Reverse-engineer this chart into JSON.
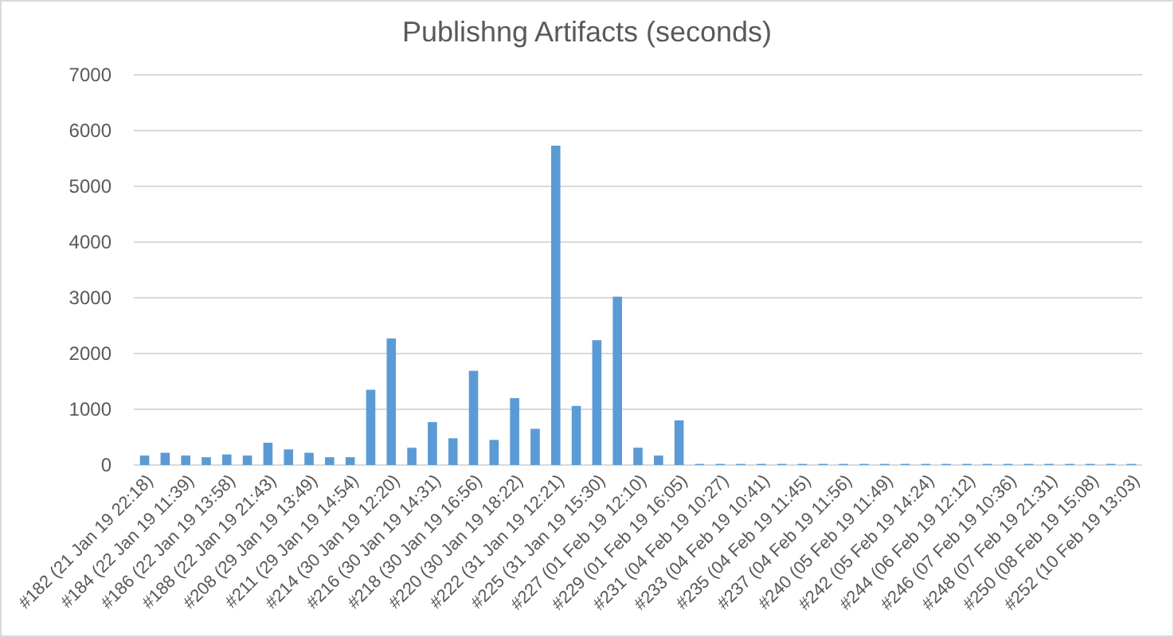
{
  "chart_data": {
    "type": "bar",
    "title": "Publishng Artifacts (seconds)",
    "categories": [
      "#182 (21 Jan 19 22:18)",
      null,
      "#184 (22 Jan 19 11:39)",
      null,
      "#186 (22 Jan 19 13:58)",
      null,
      "#188 (22 Jan 19 21:43)",
      null,
      "#208 (29 Jan 19 13:49)",
      null,
      "#211 (29 Jan 19 14:54)",
      null,
      "#214 (30 Jan 19 12:20)",
      null,
      "#216 (30 Jan 19 14:31)",
      null,
      "#218 (30 Jan 19 16:56)",
      null,
      "#220 (30 Jan 19 18:22)",
      null,
      "#222 (31 Jan 19 12:21)",
      null,
      "#225 (31 Jan 19 15:30)",
      null,
      "#227 (01 Feb 19 12:10)",
      null,
      "#229 (01 Feb 19 16:05)",
      null,
      "#231 (04 Feb 19 10:27)",
      null,
      "#233 (04 Feb 19 10:41)",
      null,
      "#235 (04 Feb 19 11:45)",
      null,
      "#237 (04 Feb 19 11:56)",
      null,
      "#240 (05 Feb 19 11:49)",
      null,
      "#242 (05 Feb 19 14:24)",
      null,
      "#244 (06 Feb 19 12:12)",
      null,
      "#246 (07 Feb 19 10:36)",
      null,
      "#248 (07 Feb 19 21:31)",
      null,
      "#250 (08 Feb 19 15:08)",
      null,
      "#252 (10 Feb 19 13:03)"
    ],
    "values": [
      170,
      220,
      170,
      140,
      190,
      170,
      400,
      280,
      220,
      140,
      140,
      1350,
      2270,
      310,
      770,
      480,
      1690,
      450,
      1200,
      650,
      5730,
      1060,
      2240,
      3020,
      310,
      170,
      800,
      20,
      20,
      20,
      20,
      20,
      20,
      20,
      20,
      20,
      20,
      20,
      20,
      20,
      20,
      20,
      20,
      20,
      20,
      20,
      20,
      20,
      20
    ],
    "color": "#5b9bd5",
    "ylim": [
      0,
      7000
    ],
    "yticks": [
      0,
      1000,
      2000,
      3000,
      4000,
      5000,
      6000,
      7000
    ],
    "grid": "y"
  }
}
